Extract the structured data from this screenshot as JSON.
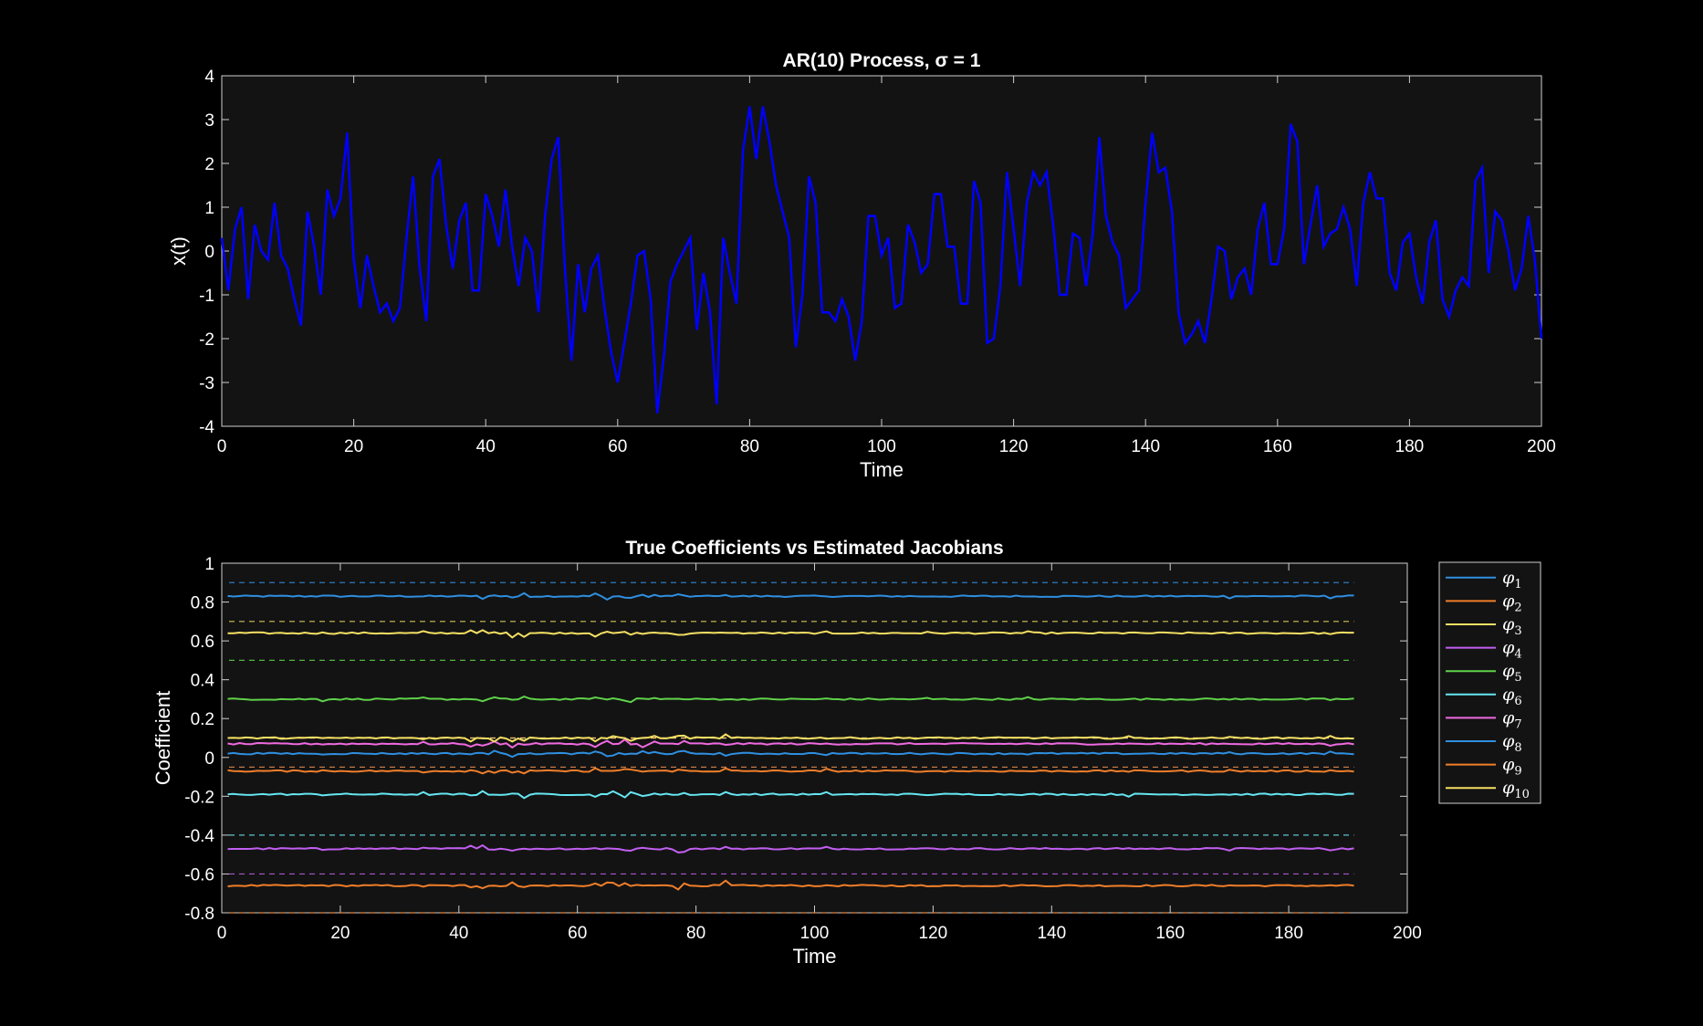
{
  "theme": {
    "figure_bg": "#000000",
    "axes_bg": "#131313",
    "axis_color": "#cfcfcf",
    "text_color": "#ffffff"
  },
  "chart_data": [
    {
      "type": "line",
      "title": "AR(10)  Process,  σ  =  1",
      "xlabel": "Time",
      "ylabel": "x(t)",
      "xlim": [
        0,
        200
      ],
      "ylim": [
        -4,
        4
      ],
      "xticks": [
        "0",
        "20",
        "40",
        "60",
        "80",
        "100",
        "120",
        "140",
        "160",
        "180",
        "200"
      ],
      "yticks": [
        "-4",
        "-3",
        "-2",
        "-1",
        "0",
        "1",
        "2",
        "3",
        "4"
      ],
      "color": "#0000ff",
      "series": [
        {
          "values": [
            0.3,
            -0.9,
            0.5,
            1.0,
            -1.1,
            0.6,
            0.0,
            -0.2,
            1.1,
            -0.1,
            -0.4,
            -1.1,
            -1.7,
            0.9,
            0.1,
            -1.0,
            1.4,
            0.8,
            1.2,
            2.7,
            -0.2,
            -1.3,
            -0.1,
            -0.8,
            -1.4,
            -1.2,
            -1.6,
            -1.3,
            0.3,
            1.7,
            -0.4,
            -1.6,
            1.7,
            2.1,
            0.6,
            -0.4,
            0.7,
            1.1,
            -0.9,
            -0.9,
            1.3,
            0.8,
            0.1,
            1.4,
            0.1,
            -0.8,
            0.3,
            0.0,
            -1.4,
            0.8,
            2.1,
            2.6,
            -0.4,
            -2.5,
            -0.3,
            -1.4,
            -0.4,
            -0.1,
            -1.3,
            -2.3,
            -3.0,
            -2.1,
            -1.2,
            -0.1,
            0.0,
            -1.1,
            -3.7,
            -2.4,
            -0.7,
            -0.3,
            0.0,
            0.3,
            -1.8,
            -0.5,
            -1.4,
            -3.5,
            0.3,
            -0.5,
            -1.2,
            2.3,
            3.3,
            2.1,
            3.3,
            2.5,
            1.5,
            0.9,
            0.3,
            -2.2,
            -1.0,
            1.7,
            1.1,
            -1.4,
            -1.4,
            -1.6,
            -1.1,
            -1.5,
            -2.5,
            -1.6,
            0.8,
            0.8,
            -0.1,
            0.3,
            -1.3,
            -1.2,
            0.6,
            0.2,
            -0.5,
            -0.3,
            1.3,
            1.3,
            0.1,
            0.1,
            -1.2,
            -1.2,
            1.6,
            1.1,
            -2.1,
            -2.0,
            -0.8,
            1.8,
            0.5,
            -0.8,
            1.1,
            1.8,
            1.5,
            1.8,
            0.6,
            -1.0,
            -1.0,
            0.4,
            0.3,
            -0.8,
            0.4,
            2.6,
            0.8,
            0.2,
            -0.1,
            -1.3,
            -1.1,
            -0.9,
            1.1,
            2.7,
            1.8,
            1.9,
            0.9,
            -1.4,
            -2.1,
            -1.9,
            -1.6,
            -2.1,
            -1.1,
            0.1,
            0.0,
            -1.1,
            -0.6,
            -0.4,
            -1.0,
            0.5,
            1.1,
            -0.3,
            -0.3,
            0.5,
            2.9,
            2.5,
            -0.3,
            0.6,
            1.5,
            0.1,
            0.4,
            0.5,
            1.0,
            0.5,
            -0.8,
            1.1,
            1.8,
            1.2,
            1.2,
            -0.5,
            -0.9,
            0.2,
            0.4,
            -0.6,
            -1.2,
            0.2,
            0.7,
            -1.1,
            -1.5,
            -0.9,
            -0.6,
            -0.8,
            1.6,
            1.9,
            -0.5,
            0.9,
            0.7,
            0.0,
            -0.9,
            -0.4,
            0.8,
            -0.2,
            -2.0
          ]
        }
      ]
    },
    {
      "type": "line",
      "title": "True Coefficients vs Estimated Jacobians",
      "xlabel": "Time",
      "ylabel": "Coefficient",
      "xlim": [
        0,
        200
      ],
      "ylim": [
        -0.8,
        1.0
      ],
      "xticks": [
        "0",
        "20",
        "40",
        "60",
        "80",
        "100",
        "120",
        "140",
        "160",
        "180",
        "200"
      ],
      "yticks": [
        "-0.8",
        "-0.6",
        "-0.4",
        "-0.2",
        "0",
        "0.2",
        "0.4",
        "0.6",
        "0.8",
        "1"
      ],
      "legend_position": "outside-right",
      "x_end": 191,
      "series": [
        {
          "name": "φ",
          "sub": "1",
          "color": "#2f8fe0",
          "true_value": 0.9,
          "estimate": 0.83
        },
        {
          "name": "φ",
          "sub": "2",
          "color": "#f07e2a",
          "true_value": -0.8,
          "estimate": -0.66
        },
        {
          "name": "φ",
          "sub": "3",
          "color": "#f5e063",
          "true_value": 0.7,
          "estimate": 0.64
        },
        {
          "name": "φ",
          "sub": "4",
          "color": "#c15ff0",
          "true_value": -0.6,
          "estimate": -0.47
        },
        {
          "name": "φ",
          "sub": "5",
          "color": "#5fd24a",
          "true_value": 0.5,
          "estimate": 0.3
        },
        {
          "name": "φ",
          "sub": "6",
          "color": "#66e6f2",
          "true_value": -0.4,
          "estimate": -0.19
        },
        {
          "name": "φ",
          "sub": "7",
          "color": "#ef6ae0",
          "true_value": 0.1,
          "estimate": 0.07
        },
        {
          "name": "φ",
          "sub": "8",
          "color": "#2f8fe0",
          "true_value": -0.05,
          "estimate": 0.02
        },
        {
          "name": "φ",
          "sub": "9",
          "color": "#f07e2a",
          "true_value": -0.05,
          "estimate": -0.07
        },
        {
          "name": "φ",
          "sub": "10",
          "color": "#f5e063",
          "true_value": 0.1,
          "estimate": 0.1
        }
      ]
    }
  ]
}
